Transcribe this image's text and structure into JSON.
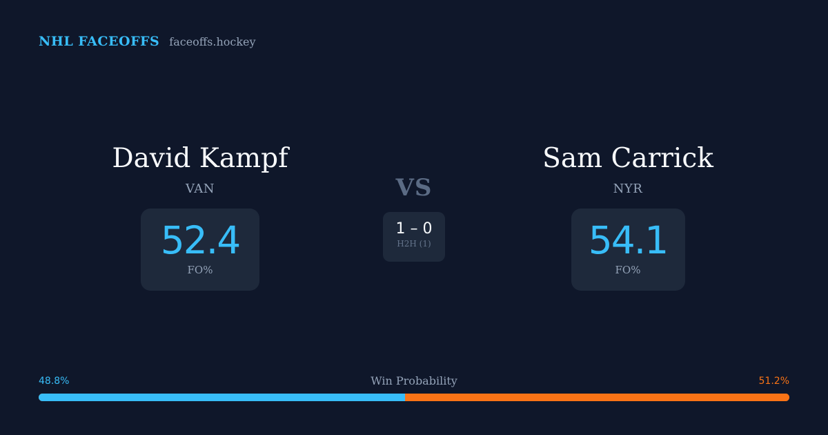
{
  "brand": {
    "title": "NHL FACEOFFS",
    "site": "faceoffs.hockey"
  },
  "players": {
    "left": {
      "name": "David Kampf",
      "team": "VAN",
      "stat_value": "52.4",
      "stat_label": "FO%"
    },
    "right": {
      "name": "Sam Carrick",
      "team": "NYR",
      "stat_value": "54.1",
      "stat_label": "FO%"
    }
  },
  "matchup": {
    "vs_label": "VS",
    "h2h_score": "1 – 0",
    "h2h_label": "H2H (1)"
  },
  "win_probability": {
    "title": "Win Probability",
    "left_label": "48.8%",
    "right_label": "51.2%",
    "left_value": 48.8,
    "right_value": 51.2
  },
  "colors": {
    "background": "#0f172a",
    "card": "#1e293b",
    "accent_left": "#38bdf8",
    "accent_right": "#f97316",
    "muted": "#94a3b8"
  }
}
